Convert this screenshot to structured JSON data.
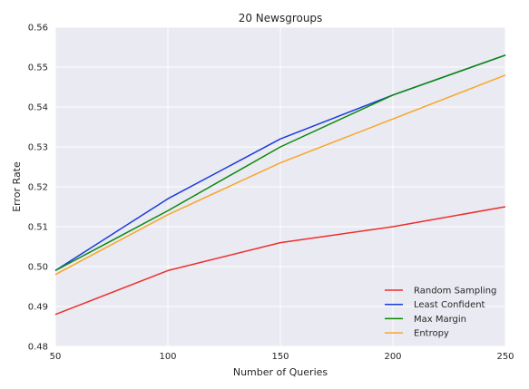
{
  "chart_data": {
    "type": "line",
    "title": "20 Newsgroups",
    "xlabel": "Number of Queries",
    "ylabel": "Error Rate",
    "x": [
      50,
      100,
      150,
      200,
      250
    ],
    "xlim": [
      50,
      250
    ],
    "ylim": [
      0.48,
      0.56
    ],
    "xticks": [
      "50",
      "100",
      "150",
      "200",
      "250"
    ],
    "yticks": [
      "0.48",
      "0.49",
      "0.50",
      "0.51",
      "0.52",
      "0.53",
      "0.54",
      "0.55",
      "0.56"
    ],
    "grid": true,
    "legend_position": "bottom-right",
    "series": [
      {
        "name": "Random Sampling",
        "color": "#ee2e2a",
        "values": [
          0.488,
          0.499,
          0.506,
          0.51,
          0.515
        ]
      },
      {
        "name": "Least Confident",
        "color": "#1c3cdc",
        "values": [
          0.499,
          0.517,
          0.532,
          0.543,
          0.553
        ]
      },
      {
        "name": "Max Margin",
        "color": "#0a8a0a",
        "values": [
          0.499,
          0.514,
          0.53,
          0.543,
          0.553
        ]
      },
      {
        "name": "Entropy",
        "color": "#f9a52a",
        "values": [
          0.498,
          0.513,
          0.526,
          0.537,
          0.548
        ]
      }
    ]
  }
}
